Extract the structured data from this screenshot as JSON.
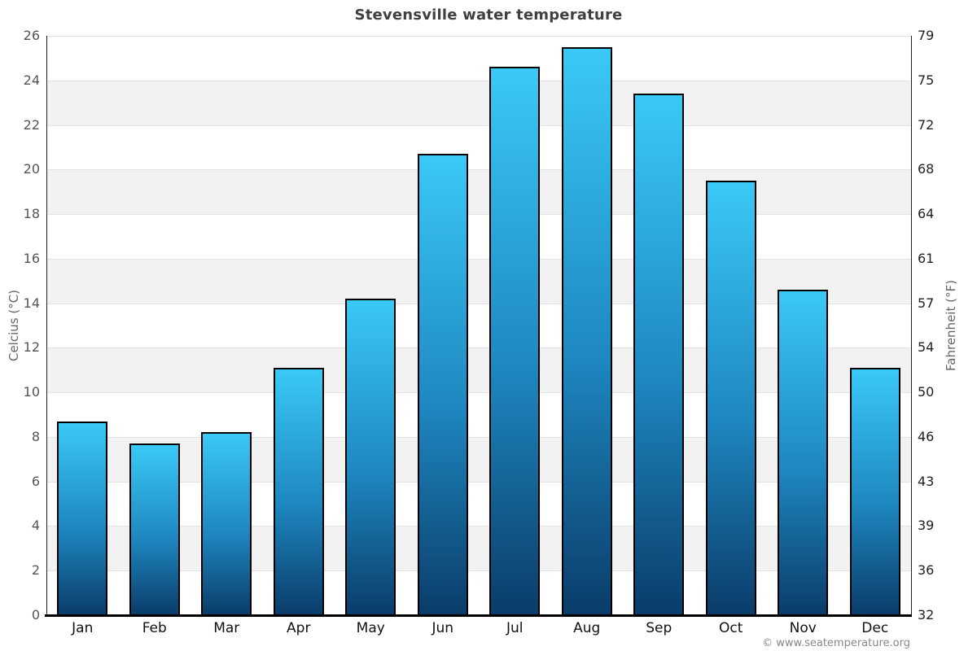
{
  "title": "Stevensville water temperature",
  "footer_credit": "© www.seatemperature.org",
  "axes": {
    "left_label": "Celcius (°C)",
    "right_label": "Fahrenheit (°F)"
  },
  "chart_data": {
    "type": "bar",
    "title": "Stevensville water temperature",
    "categories": [
      "Jan",
      "Feb",
      "Mar",
      "Apr",
      "May",
      "Jun",
      "Jul",
      "Aug",
      "Sep",
      "Oct",
      "Nov",
      "Dec"
    ],
    "values": [
      8.7,
      7.7,
      8.2,
      11.1,
      14.2,
      20.7,
      24.6,
      25.5,
      23.4,
      19.5,
      14.6,
      11.1
    ],
    "unit": "°C",
    "ylabel_left": "Celcius (°C)",
    "ylabel_right": "Fahrenheit (°F)",
    "ylim": [
      0,
      26
    ],
    "celsius_ticks": [
      0,
      2,
      4,
      6,
      8,
      10,
      12,
      14,
      16,
      18,
      20,
      22,
      24,
      26
    ],
    "fahrenheit_tick_labels": [
      "32",
      "36",
      "39",
      "43",
      "46",
      "50",
      "54",
      "57",
      "61",
      "64",
      "68",
      "72",
      "75",
      "79"
    ],
    "grid": "horizontal gridlines every 2°C with alternating shaded bands",
    "legend_position": "none",
    "bar_gradient_top": "#3ac9f7",
    "bar_gradient_mid": "#1e87c0",
    "bar_gradient_bottom": "#0a3c69",
    "bar_border_color": "#000000"
  },
  "colors": {
    "band_gray": "#f2f2f2",
    "band_white": "#ffffff",
    "gridline": "#e2e2e2",
    "axis_line": "#222222",
    "baseline": "#000000",
    "title_text": "#404040",
    "tick_left_text": "#555555",
    "tick_right_text": "#222222",
    "month_text": "#111111",
    "axis_label_text": "#666666",
    "footer_text": "#888888"
  }
}
